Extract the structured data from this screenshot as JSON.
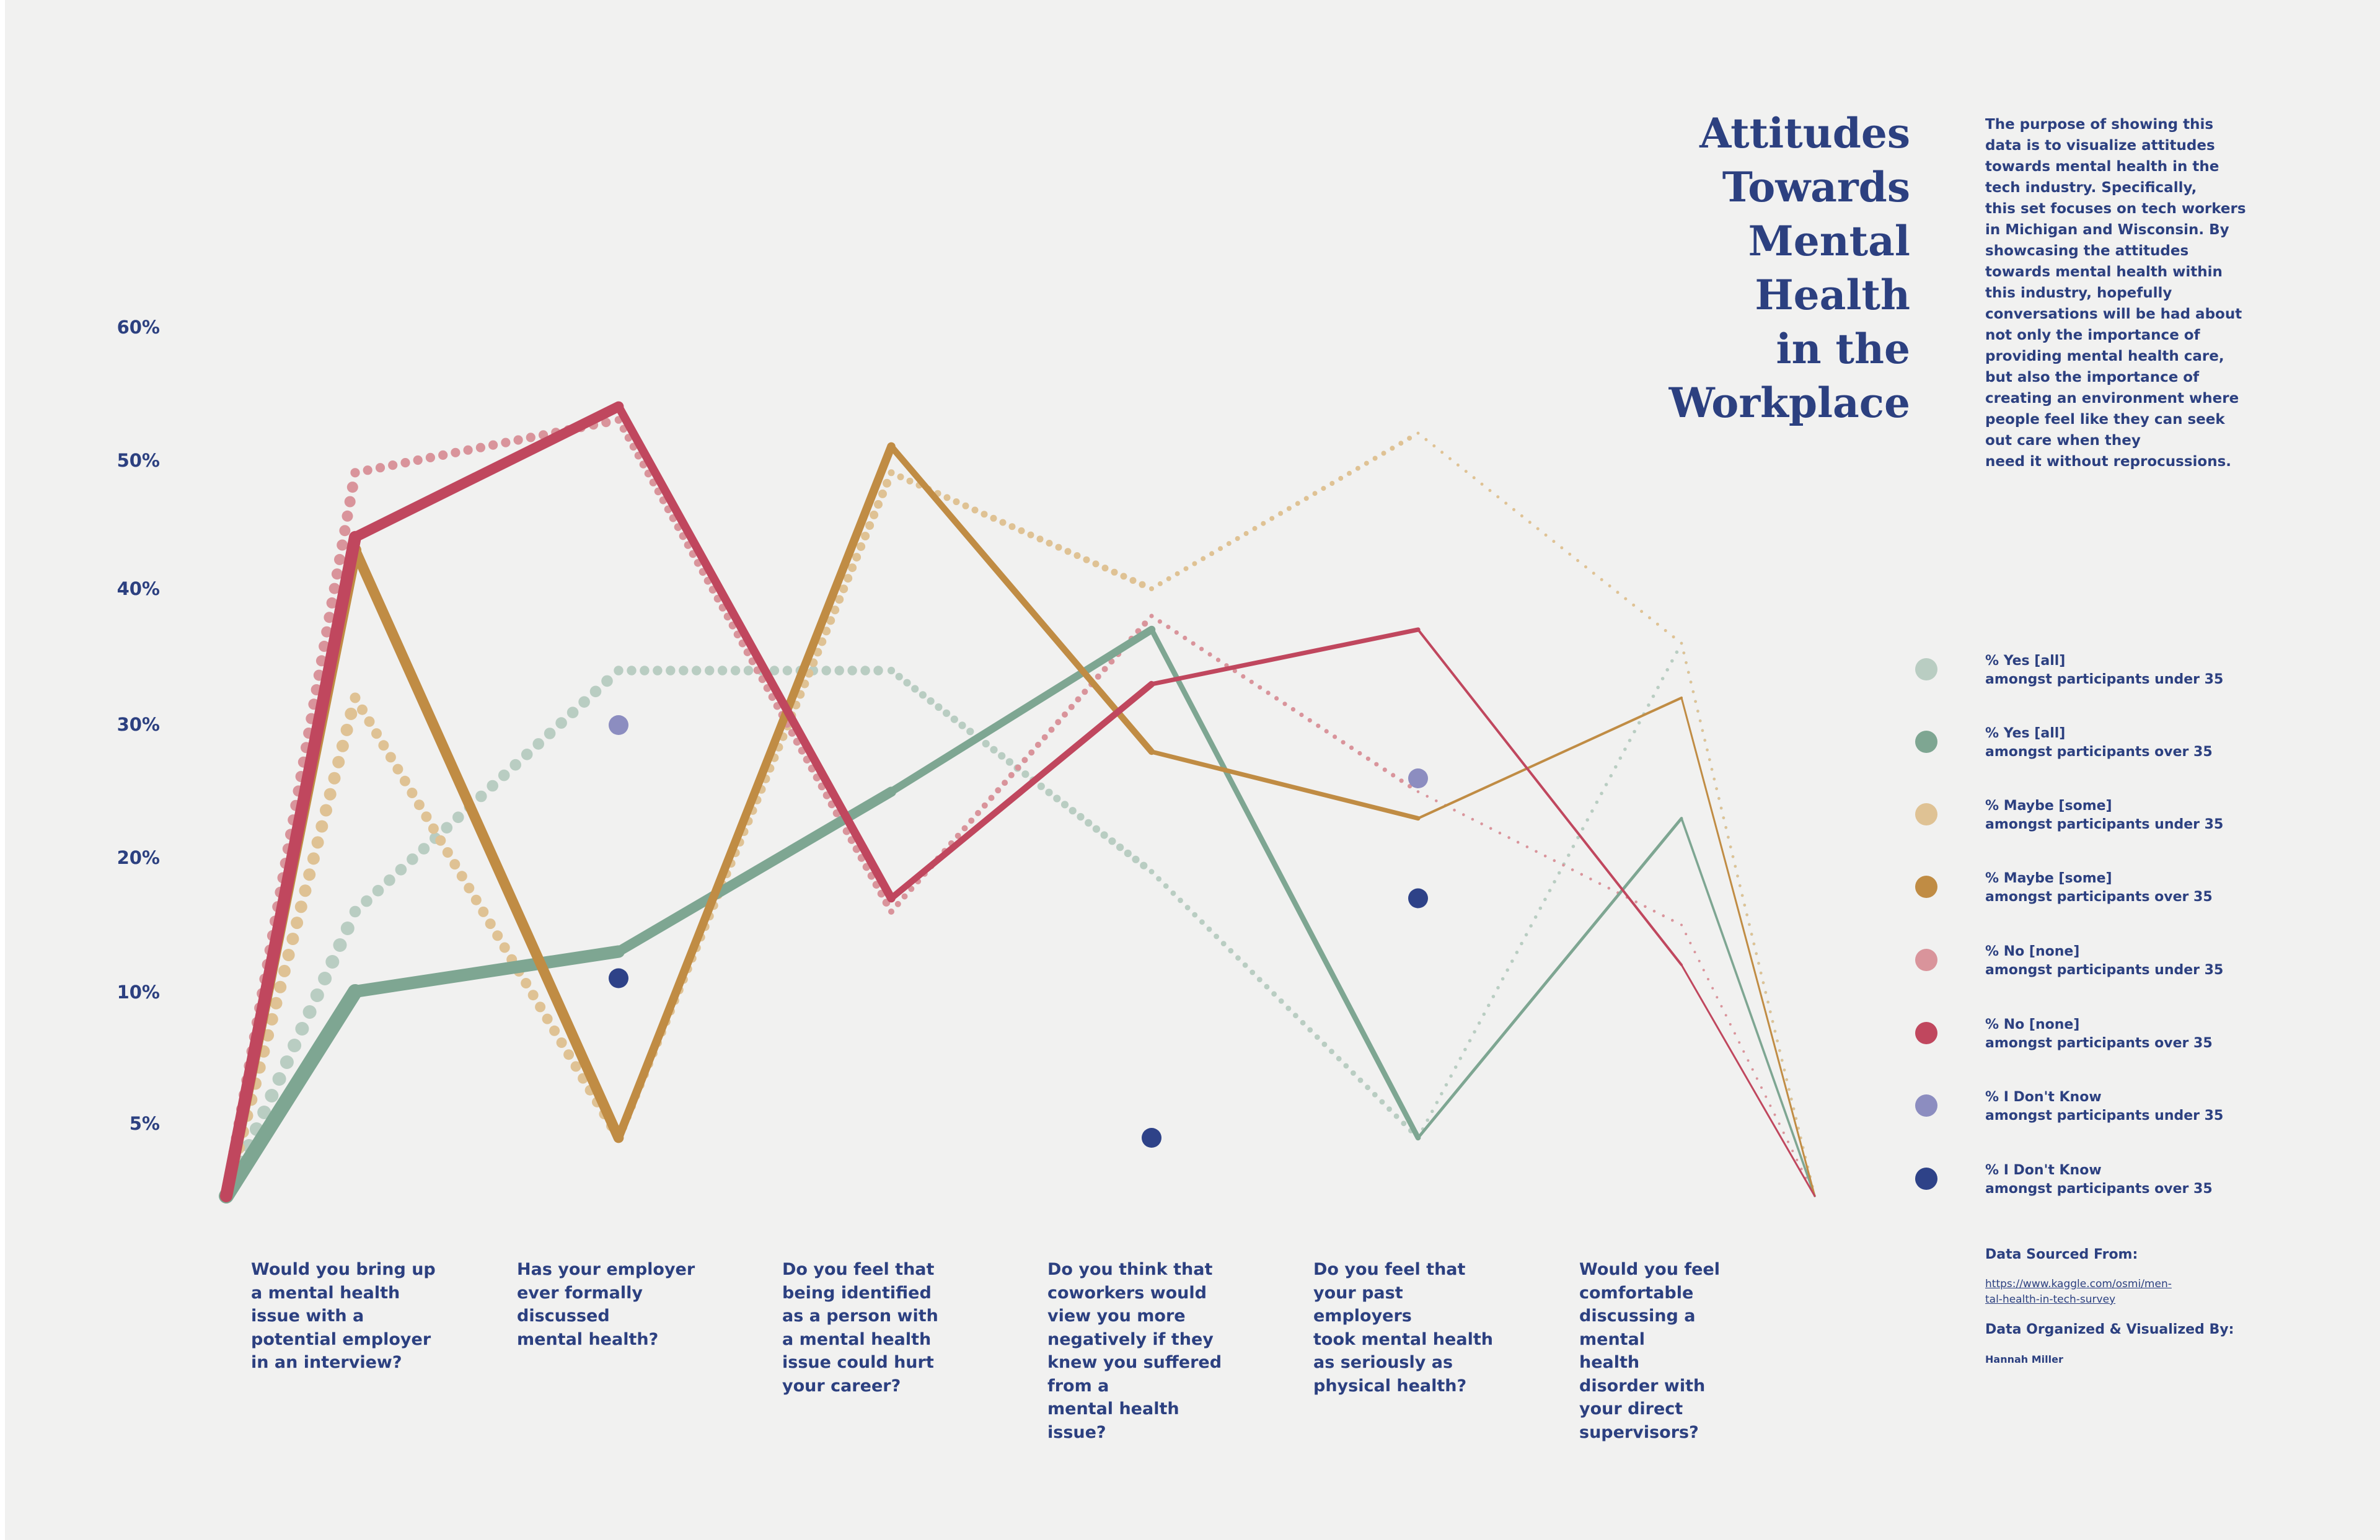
{
  "title": "Attitudes\nTowards\nMental\nHealth\nin the\nWorkplace",
  "description": "The purpose of showing this\ndata is to visualize attitudes\ntowards mental health in the\ntech industry. Specifically,\nthis set focuses on tech workers\nin Michigan and Wisconsin. By\nshowcasing the attitudes\ntowards mental health within\nthis industry, hopefully\nconversations will be had about\nnot only the importance of\nproviding mental health care,\nbut also the importance of\ncreating an environment where\npeople feel like they can seek\nout care when they\nneed it without reprocussions.",
  "y_ticks": [
    "60%",
    "50%",
    "40%",
    "30%",
    "20%",
    "10%",
    "5%"
  ],
  "questions": [
    "Would you bring up\na mental health\nissue with a\npotential employer\nin an interview?",
    "Has your employer\never formally\ndiscussed\nmental health?",
    "Do you feel that\nbeing identified\nas a person with\na mental health\nissue could hurt\nyour career?",
    "Do you think that\ncoworkers would\nview you more\nnegatively if they\nknew you suffered\nfrom a\nmental health issue?",
    "Do you feel that\nyour past employers\ntook mental health\nas seriously as\nphysical health?",
    "Would you feel\ncomfortable\ndiscussing a mental\nhealth\ndisorder with\nyour direct\nsupervisors?"
  ],
  "legend": [
    {
      "label": "% Yes [all]\namongst  participants under 35",
      "color": "#b9cdc2"
    },
    {
      "label": "% Yes [all]\namongst  participants over 35",
      "color": "#7ea692"
    },
    {
      "label": "% Maybe [some]\namongst  participants under 35",
      "color": "#dfc294"
    },
    {
      "label": "% Maybe [some]\namongst  participants over 35",
      "color": "#c08c44"
    },
    {
      "label": "% No [none]\namongst  participants under 35",
      "color": "#d9949b"
    },
    {
      "label": "% No [none]\namongst  participants over 35",
      "color": "#c0475e"
    },
    {
      "label": "% I Don't Know\namongst  participants under 35",
      "color": "#8c8dc0"
    },
    {
      "label": "% I Don't Know\namongst  participants over 35",
      "color": "#2e4288"
    }
  ],
  "source": {
    "heading": "Data Sourced From:",
    "link": "https://www.kaggle.com/osmi/men-\ntal-health-in-tech-survey"
  },
  "credit": {
    "heading": "Data Organized & Visualized By:",
    "name": "Hannah Miller"
  },
  "chart_data": {
    "type": "line",
    "categories": [
      "Would you bring up a mental health issue with a potential employer in an interview?",
      "Has your employer ever formally discussed mental health?",
      "Do you feel that being identified as a person with a mental health issue could hurt your career?",
      "Do you think that coworkers would view you more negatively if they knew you suffered from a mental health issue?",
      "Do you feel that your past employers took mental health as seriously as physical health?",
      "Would you feel comfortable discussing a mental health disorder with your direct supervisors?"
    ],
    "y_ticks": [
      60,
      50,
      40,
      30,
      20,
      10,
      5
    ],
    "series": [
      {
        "name": "% Yes [all] amongst  participants under 35",
        "color": "#b9cdc2",
        "style": "dotted",
        "values": [
          16,
          34,
          34,
          19,
          4,
          36
        ]
      },
      {
        "name": "% Yes [all] amongst  participants over 35",
        "color": "#7ea692",
        "style": "solid",
        "values": [
          10,
          13,
          25,
          37,
          4,
          23
        ]
      },
      {
        "name": "% Maybe [some] amongst  participants under 35",
        "color": "#dfc294",
        "style": "dotted",
        "values": [
          32,
          4,
          49,
          40,
          52,
          36
        ]
      },
      {
        "name": "% Maybe [some] amongst  participants over 35",
        "color": "#c08c44",
        "style": "solid",
        "values": [
          43,
          4,
          51,
          28,
          23,
          32
        ]
      },
      {
        "name": "% No [none] amongst  participants under 35",
        "color": "#d9949b",
        "style": "dotted",
        "values": [
          49,
          53,
          16,
          38,
          25,
          15
        ]
      },
      {
        "name": "% No [none] amongst  participants over 35",
        "color": "#c0475e",
        "style": "solid",
        "values": [
          44,
          54,
          17,
          33,
          37,
          12
        ]
      },
      {
        "name": "% I Don't Know amongst  participants under 35",
        "color": "#8c8dc0",
        "style": "point",
        "values": [
          null,
          30,
          null,
          null,
          26,
          null
        ]
      },
      {
        "name": "% I Don't Know amongst  participants over 35",
        "color": "#2e4288",
        "style": "point",
        "values": [
          null,
          11,
          null,
          4,
          17,
          null
        ]
      }
    ]
  }
}
